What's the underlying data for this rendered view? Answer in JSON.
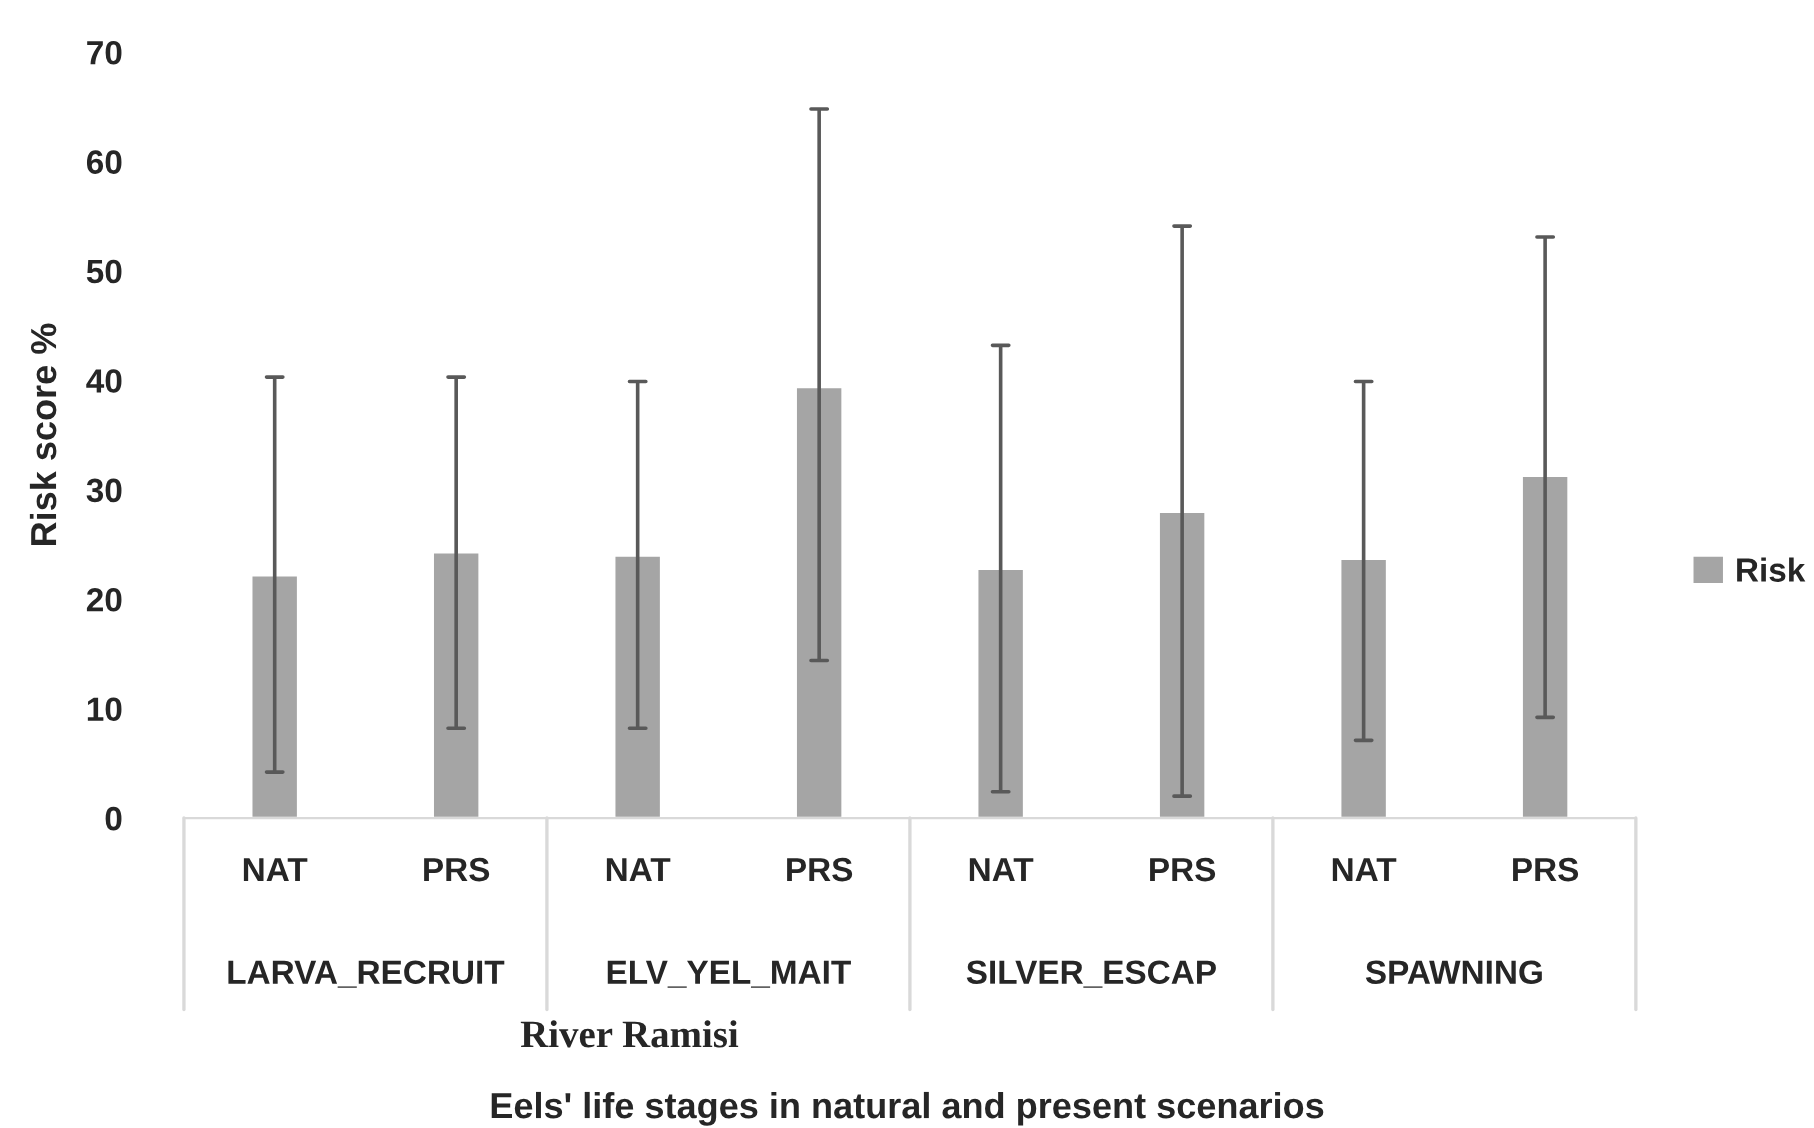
{
  "chart_data": {
    "type": "bar",
    "categories": [
      "NAT",
      "PRS",
      "NAT",
      "PRS",
      "NAT",
      "PRS",
      "NAT",
      "PRS"
    ],
    "series": [
      {
        "name": "Risk",
        "color": "#a5a5a5",
        "values": [
          22.2,
          24.3,
          24.0,
          39.4,
          22.8,
          28.0,
          23.7,
          31.3
        ],
        "errors": [
          [
            4.2,
            40.3
          ],
          [
            8.2,
            40.3
          ],
          [
            8.2,
            39.9
          ],
          [
            14.4,
            64.8
          ],
          [
            2.4,
            43.2
          ],
          [
            2.0,
            54.1
          ],
          [
            7.1,
            39.9
          ],
          [
            9.2,
            53.1
          ]
        ]
      }
    ],
    "ylabel": "Risk score %",
    "annotations": [
      "LARVA_RECRUIT",
      "ELV_YEL_MAIT",
      "SILVER_ESCAP",
      "SPAWNING",
      "River Ramisi",
      "Eels' life stages in natural and present scenarios"
    ],
    "ylim": [
      0,
      70
    ],
    "yticks": [
      0,
      10,
      20,
      30,
      40,
      50,
      60,
      70
    ],
    "grid": false,
    "legend": "right"
  }
}
